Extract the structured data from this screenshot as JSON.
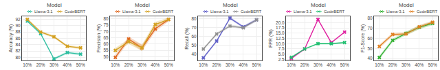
{
  "chart_data": [
    {
      "type": "line",
      "title": "Model",
      "y_label": "Accuracy (%)",
      "categories": [
        "10%",
        "20%",
        "30%",
        "40%",
        "50%"
      ],
      "ylim": [
        79,
        93
      ],
      "yticks": [
        80,
        82,
        84,
        86,
        88,
        90,
        92
      ],
      "grid": true,
      "legend": "upper right",
      "marker": "x",
      "series": [
        {
          "name": "Llama-3.1",
          "color": "#2cbea0",
          "values": [
            91.5,
            87.5,
            79.5,
            81.5,
            81.0
          ],
          "std": [
            0.4,
            0.4,
            0.4,
            0.4,
            0.4
          ]
        },
        {
          "name": "CodeBERT",
          "color": "#d4a020",
          "values": [
            92.0,
            88.0,
            86.5,
            83.5,
            83.0
          ],
          "std": [
            0.4,
            0.4,
            0.4,
            0.4,
            0.4
          ]
        }
      ]
    },
    {
      "type": "line",
      "title": "Model",
      "y_label": "Precision (%)",
      "categories": [
        "10%",
        "20%",
        "30%",
        "40%",
        "50%"
      ],
      "ylim": [
        47,
        82
      ],
      "yticks": [
        50,
        55,
        60,
        65,
        70,
        75,
        80
      ],
      "grid": true,
      "legend": "upper right",
      "marker": "x",
      "series": [
        {
          "name": "Llama-3.1",
          "color": "#e06820",
          "values": [
            49.5,
            64.0,
            57.0,
            72.0,
            79.5
          ],
          "std": [
            2.0,
            2.0,
            2.5,
            2.0,
            1.5
          ]
        },
        {
          "name": "CodeBERT",
          "color": "#d4a020",
          "values": [
            55.0,
            62.0,
            57.0,
            75.5,
            79.5
          ],
          "std": [
            2.0,
            2.0,
            2.5,
            2.0,
            1.5
          ]
        }
      ]
    },
    {
      "type": "line",
      "title": "Model",
      "y_label": "Recall (%)",
      "categories": [
        "10%",
        "20%",
        "30%",
        "40%",
        "50%"
      ],
      "ylim": [
        33,
        83
      ],
      "yticks": [
        40,
        50,
        60,
        70,
        80
      ],
      "grid": true,
      "legend": "upper right",
      "marker": "x",
      "series": [
        {
          "name": "Llama-3.1",
          "color": "#6060c8",
          "values": [
            36.0,
            55.0,
            81.0,
            71.0,
            79.0
          ],
          "std": [
            1.5,
            1.5,
            1.5,
            1.5,
            1.5
          ]
        },
        {
          "name": "CodeBERT",
          "color": "#909090",
          "values": [
            46.0,
            63.0,
            72.0,
            70.0,
            79.0
          ],
          "std": [
            1.5,
            1.5,
            1.5,
            1.5,
            1.5
          ]
        }
      ]
    },
    {
      "type": "line",
      "title": "Model",
      "y_label": "FPR (%)",
      "categories": [
        "10%",
        "20%",
        "30%",
        "40%",
        "50%"
      ],
      "ylim": [
        2.0,
        23.0
      ],
      "yticks": [
        2.5,
        {
          "value": 5,
          "label": "5.0"
        },
        7.5,
        {
          "value": 10,
          "label": "10.0"
        },
        12.5,
        {
          "value": 15,
          "label": "15.0"
        },
        17.5,
        {
          "value": 20,
          "label": "20.0"
        }
      ],
      "grid": true,
      "legend": "upper left",
      "marker": "x",
      "series": [
        {
          "name": "Llama-3.1",
          "color": "#e020a0",
          "values": [
            3.0,
            7.5,
            21.5,
            10.5,
            15.5
          ],
          "std": [
            0.4,
            0.4,
            0.4,
            0.4,
            0.4
          ]
        },
        {
          "name": "CodeBERT",
          "color": "#20c070",
          "values": [
            3.5,
            7.5,
            10.0,
            10.0,
            10.5
          ],
          "std": [
            0.4,
            0.4,
            0.4,
            0.4,
            0.4
          ]
        }
      ]
    },
    {
      "type": "line",
      "title": "Model",
      "y_label": "F1-Score (%)",
      "categories": [
        "10%",
        "20%",
        "30%",
        "40%",
        "50%"
      ],
      "ylim": [
        38,
        82
      ],
      "yticks": [
        40,
        50,
        60,
        70,
        80
      ],
      "grid": true,
      "legend": "upper right",
      "marker": "x",
      "series": [
        {
          "name": "Llama-3.1",
          "color": "#30b030",
          "values": [
            41.0,
            58.0,
            65.0,
            71.0,
            75.0
          ],
          "std": [
            1.8,
            1.8,
            1.8,
            1.8,
            1.8
          ]
        },
        {
          "name": "CodeBERT",
          "color": "#e08020",
          "values": [
            52.0,
            64.0,
            64.5,
            71.5,
            76.0
          ],
          "std": [
            1.8,
            1.8,
            1.8,
            1.8,
            1.8
          ]
        }
      ]
    }
  ]
}
